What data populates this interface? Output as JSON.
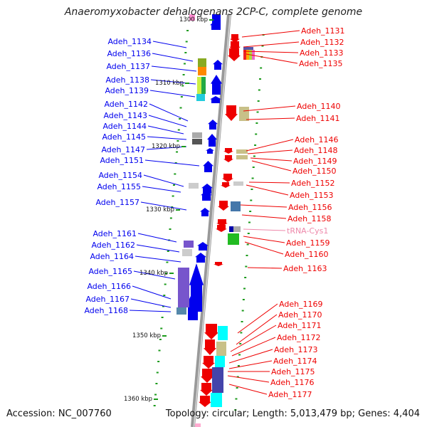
{
  "title": "Anaeromyxobacter dehalogenans 2CP-C, complete genome",
  "accession": "Accession: NC_007760",
  "info": "Topology: circular; Length: 5,013,479 bp; Genes: 4,404",
  "colors": {
    "left_strand": "#0000ee",
    "right_strand": "#ee0000",
    "rna_label": "#ee88aa",
    "backbone": "#999999",
    "tick": "#1a9a1a"
  },
  "scale_marks": [
    "1300 kbp",
    "1310 kbp",
    "1320 kbp",
    "1330 kbp",
    "1340 kbp",
    "1350 kbp",
    "1360 kbp"
  ],
  "left_genes": [
    "Adeh_1134",
    "Adeh_1136",
    "Adeh_1137",
    "Adeh_1138",
    "Adeh_1139",
    "Adeh_1142",
    "Adeh_1143",
    "Adeh_1144",
    "Adeh_1145",
    "Adeh_1147",
    "Adeh_1151",
    "Adeh_1154",
    "Adeh_1155",
    "Adeh_1157",
    "Adeh_1161",
    "Adeh_1162",
    "Adeh_1164",
    "Adeh_1165",
    "Adeh_1166",
    "Adeh_1167",
    "Adeh_1168"
  ],
  "right_genes": [
    "Adeh_1131",
    "Adeh_1132",
    "Adeh_1133",
    "Adeh_1135",
    "Adeh_1140",
    "Adeh_1141",
    "Adeh_1146",
    "Adeh_1148",
    "Adeh_1149",
    "Adeh_1150",
    "Adeh_1152",
    "Adeh_1153",
    "Adeh_1156",
    "Adeh_1158",
    "tRNA-Cys1",
    "Adeh_1159",
    "Adeh_1160",
    "Adeh_1163",
    "Adeh_1169",
    "Adeh_1170",
    "Adeh_1171",
    "Adeh_1172",
    "Adeh_1173",
    "Adeh_1174",
    "Adeh_1175",
    "Adeh_1176",
    "Adeh_1177"
  ]
}
